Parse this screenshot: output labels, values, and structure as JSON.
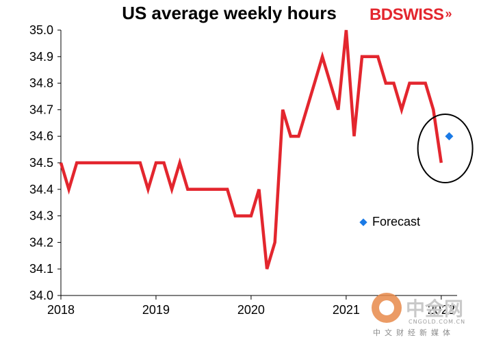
{
  "chart_data": {
    "type": "line",
    "title": "US average weekly hours",
    "xlabel": "",
    "ylabel": "",
    "ylim": [
      34.0,
      35.0
    ],
    "yticks": [
      "34.0",
      "34.1",
      "34.2",
      "34.3",
      "34.4",
      "34.5",
      "34.6",
      "34.7",
      "34.8",
      "34.9",
      "35.0"
    ],
    "xlim": [
      "2018-01",
      "2022-03"
    ],
    "xticks": [
      "2018",
      "2019",
      "2020",
      "2021",
      "2022"
    ],
    "grid": false,
    "colors": {
      "actual": "#e3262e",
      "forecast": "#1a7ae6"
    },
    "series": [
      {
        "points": [
          [
            "2018-01",
            34.5
          ],
          [
            "2018-02",
            34.4
          ],
          [
            "2018-03",
            34.5
          ],
          [
            "2018-04",
            34.5
          ],
          [
            "2018-05",
            34.5
          ],
          [
            "2018-06",
            34.5
          ],
          [
            "2018-07",
            34.5
          ],
          [
            "2018-08",
            34.5
          ],
          [
            "2018-09",
            34.5
          ],
          [
            "2018-10",
            34.5
          ],
          [
            "2018-11",
            34.5
          ],
          [
            "2018-12",
            34.4
          ],
          [
            "2019-01",
            34.5
          ],
          [
            "2019-02",
            34.5
          ],
          [
            "2019-03",
            34.4
          ],
          [
            "2019-04",
            34.5
          ],
          [
            "2019-05",
            34.4
          ],
          [
            "2019-06",
            34.4
          ],
          [
            "2019-07",
            34.4
          ],
          [
            "2019-08",
            34.4
          ],
          [
            "2019-09",
            34.4
          ],
          [
            "2019-10",
            34.4
          ],
          [
            "2019-11",
            34.3
          ],
          [
            "2019-12",
            34.3
          ],
          [
            "2020-01",
            34.3
          ],
          [
            "2020-02",
            34.4
          ],
          [
            "2020-03",
            34.1
          ],
          [
            "2020-04",
            34.2
          ],
          [
            "2020-05",
            34.7
          ],
          [
            "2020-06",
            34.6
          ],
          [
            "2020-07",
            34.6
          ],
          [
            "2020-08",
            34.7
          ],
          [
            "2020-09",
            34.8
          ],
          [
            "2020-10",
            34.9
          ],
          [
            "2020-11",
            34.8
          ],
          [
            "2020-12",
            34.7
          ],
          [
            "2021-01",
            35.0
          ],
          [
            "2021-02",
            34.6
          ],
          [
            "2021-03",
            34.9
          ],
          [
            "2021-04",
            34.9
          ],
          [
            "2021-05",
            34.9
          ],
          [
            "2021-06",
            34.8
          ],
          [
            "2021-07",
            34.8
          ],
          [
            "2021-08",
            34.7
          ],
          [
            "2021-09",
            34.8
          ],
          [
            "2021-10",
            34.8
          ],
          [
            "2021-11",
            34.8
          ],
          [
            "2021-12",
            34.7
          ],
          [
            "2022-01",
            34.5
          ]
        ]
      },
      {
        "name": "Forecast",
        "points": [
          [
            "2022-02",
            34.6
          ]
        ]
      }
    ],
    "annotations": [
      {
        "type": "ellipse",
        "around": [
          "2022-01",
          "2022-02"
        ]
      }
    ]
  },
  "branding": {
    "logo_text_bd": "BD",
    "logo_text_swiss": "SWISS",
    "logo_chevrons": "»"
  },
  "watermark": {
    "text": "中金网",
    "url": "CNGOLD.COM.CN",
    "subtitle": "中文财经新媒体"
  }
}
